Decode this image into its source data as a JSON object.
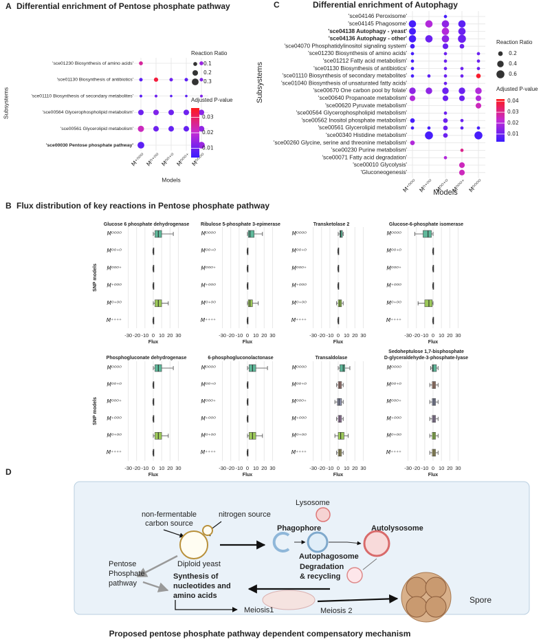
{
  "chart_data": [
    {
      "type": "dot",
      "label": "A",
      "title": "Differential enrichment of Pentose phosphate pathway",
      "ylabel": "Subsystems",
      "xlabel": "Models",
      "categories": [
        "M⁺ᴼᴼᴼ",
        "Mᴼ⁺ᴼᴼ",
        "Mᴼᴼ⁺ᴼ",
        "Mᴼᴼᴼ⁺",
        "Mᴼᴼᴼᴼ"
      ],
      "rows": [
        "'sce01230  Biosynthesis of amino acids'",
        "'sce01130  Biosynthesis of antibiotics'",
        "'sce01110  Biosynthesis of secondary metabolites'",
        "'sce00564  Glycerophospholipid metabolism'",
        "'sce00561  Glycerolipid metabolism'",
        "'sce00030  Pentose phosphate pathway'"
      ],
      "highlight_rows": [
        5
      ],
      "highlight_color": "#8b0000",
      "sizes": [
        [
          0.1,
          null,
          null,
          null,
          0.1
        ],
        [
          0.08,
          0.12,
          0.08,
          0.08,
          0.08
        ],
        [
          0.05,
          0.05,
          0.04,
          0.04,
          0.05
        ],
        [
          0.2,
          0.2,
          0.2,
          0.2,
          0.2
        ],
        [
          0.25,
          0.2,
          0.2,
          0.2,
          0.22
        ],
        [
          0.3,
          null,
          null,
          null,
          0.3
        ]
      ],
      "pvalues": [
        [
          0.025,
          null,
          null,
          null,
          0.015
        ],
        [
          0.008,
          0.033,
          0.01,
          0.008,
          0.012
        ],
        [
          0.008,
          0.01,
          0.008,
          0.008,
          0.012
        ],
        [
          0.01,
          0.012,
          0.01,
          0.01,
          0.013
        ],
        [
          0.022,
          0.01,
          0.009,
          0.009,
          0.014
        ],
        [
          0.008,
          null,
          null,
          null,
          0.015
        ]
      ],
      "size_legend_title": "Reaction Ratio",
      "size_ticks": [
        0.1,
        0.2,
        0.3
      ],
      "color_legend_title": "Adjusted P-value",
      "colorlim": [
        0.004,
        0.036
      ],
      "color_ticks": [
        0.01,
        0.02,
        0.03
      ],
      "colors": [
        "#3a1cff",
        "#c42bd4",
        "#ff1a1a"
      ]
    },
    {
      "type": "box",
      "label": "B",
      "title": "Flux distribution of key reactions in  Pentose phosphate pathway",
      "ylabel": "SNP models",
      "xlabel": "Flux",
      "categories": [
        "Mᴼᴼᴼᴼ",
        "Mᴼᴼ⁺ᴼ",
        "Mᴼᴼᴼ⁺",
        "M⁺ᴼᴼᴼ",
        "Mᴼ⁺ᴼᴼ",
        "M⁺⁺⁺⁺"
      ],
      "xlim": [
        -33,
        33
      ],
      "xticks": [
        -30,
        -20,
        -10,
        0,
        10,
        20,
        30
      ],
      "panels": [
        {
          "title": [
            "Glucose 6  phosphate dehydrogenase"
          ],
          "colors": [
            "#5fb89a",
            "#6d6d6d",
            "#6d6d6d",
            "#6d6d6d",
            "#9cc95a",
            "#6d6d6d"
          ],
          "boxes": [
            [
              0,
              2,
              6,
              10,
              24
            ],
            [
              -0.5,
              0,
              0,
              0.3,
              0.5
            ],
            [
              -0.5,
              0,
              0,
              0.3,
              0.5
            ],
            [
              -0.5,
              0,
              0,
              0.3,
              0.5
            ],
            [
              0,
              2,
              6,
              10,
              18
            ],
            [
              -0.5,
              0,
              0,
              0.3,
              0.5
            ]
          ]
        },
        {
          "title": [
            "Ribulose 5-phosphate 3-epimerase"
          ],
          "colors": [
            "#5fb89a",
            "#6d6d6d",
            "#6d6d6d",
            "#6d6d6d",
            "#9cc95a",
            "#6d6d6d"
          ],
          "boxes": [
            [
              0,
              1,
              3,
              8,
              18
            ],
            [
              -0.5,
              0,
              0,
              0.3,
              0.5
            ],
            [
              -0.5,
              0,
              0,
              0.3,
              0.5
            ],
            [
              -0.5,
              0,
              0,
              0.3,
              0.5
            ],
            [
              0,
              1,
              3,
              6,
              13
            ],
            [
              -0.5,
              0,
              0,
              0.3,
              0.5
            ]
          ]
        },
        {
          "title": [
            "Transketolase 2"
          ],
          "colors": [
            "#5fb89a",
            "#6d6d6d",
            "#6d6d6d",
            "#6d6d6d",
            "#9cc95a",
            "#6d6d6d"
          ],
          "boxes": [
            [
              0,
              2,
              3,
              5,
              6
            ],
            [
              -0.5,
              0,
              0,
              0.3,
              0.5
            ],
            [
              -0.5,
              0,
              0,
              0.3,
              0.5
            ],
            [
              -0.5,
              0,
              0,
              0.3,
              0.5
            ],
            [
              -2,
              0,
              2,
              4,
              6
            ],
            [
              -0.5,
              0,
              0,
              0.3,
              0.5
            ]
          ]
        },
        {
          "title": [
            "Glucose-6-phosphate isomerase"
          ],
          "colors": [
            "#5fb89a",
            "#6d6d6d",
            "#6d6d6d",
            "#6d6d6d",
            "#9cc95a",
            "#6d6d6d"
          ],
          "boxes": [
            [
              -22,
              -12,
              -6,
              -2,
              0
            ],
            [
              -0.5,
              0,
              0,
              0.3,
              0.5
            ],
            [
              -0.5,
              0,
              0,
              0.3,
              0.5
            ],
            [
              -0.5,
              0,
              0,
              0.3,
              0.5
            ],
            [
              -18,
              -10,
              -5,
              -1,
              0
            ],
            [
              -0.5,
              0,
              0,
              0.3,
              0.5
            ]
          ]
        },
        {
          "title": [
            "Phosphogluconate dehydrogenase"
          ],
          "colors": [
            "#5fb89a",
            "#6d6d6d",
            "#6d6d6d",
            "#6d6d6d",
            "#9cc95a",
            "#6d6d6d"
          ],
          "boxes": [
            [
              0,
              2,
              6,
              10,
              24
            ],
            [
              -0.5,
              0,
              0,
              0.3,
              0.5
            ],
            [
              -0.5,
              0,
              0,
              0.3,
              0.5
            ],
            [
              -0.5,
              0,
              0,
              0.3,
              0.5
            ],
            [
              0,
              2,
              6,
              10,
              18
            ],
            [
              -0.5,
              0,
              0,
              0.3,
              0.5
            ]
          ]
        },
        {
          "title": [
            "6-phosphogluconolactonase"
          ],
          "colors": [
            "#5fb89a",
            "#6d6d6d",
            "#6d6d6d",
            "#6d6d6d",
            "#9cc95a",
            "#6d6d6d"
          ],
          "boxes": [
            [
              0,
              2,
              6,
              10,
              24
            ],
            [
              -0.5,
              0,
              0,
              0.3,
              0.5
            ],
            [
              -0.5,
              0,
              0,
              0.3,
              0.5
            ],
            [
              -0.5,
              0,
              0,
              0.3,
              0.5
            ],
            [
              0,
              2,
              6,
              10,
              18
            ],
            [
              -0.5,
              0,
              0,
              0.3,
              0.5
            ]
          ]
        },
        {
          "title": [
            "Transaldolase"
          ],
          "colors": [
            "#5fb89a",
            "#b08a84",
            "#8a8fa8",
            "#a88ab0",
            "#9cc95a",
            "#a9a26c"
          ],
          "boxes": [
            [
              0,
              2,
              6,
              8,
              14
            ],
            [
              -2,
              0,
              2,
              4,
              6
            ],
            [
              -4,
              -1,
              1,
              4,
              6
            ],
            [
              -2,
              0,
              2,
              4,
              6
            ],
            [
              -4,
              0,
              3,
              7,
              12
            ],
            [
              -2,
              0,
              2,
              4,
              6
            ]
          ]
        },
        {
          "title": [
            "Sedoheptulose 1,7-bisphosphate",
            "D-glyceraldehyde-3-phosphate-lyase"
          ],
          "colors": [
            "#5fb89a",
            "#b08a7a",
            "#8a8fa8",
            "#9a8aa8",
            "#9cc95a",
            "#a9a26c"
          ],
          "boxes": [
            [
              -3,
              -1,
              0,
              4,
              6
            ],
            [
              -4,
              -1,
              1,
              3,
              6
            ],
            [
              -4,
              -1,
              1,
              3,
              6
            ],
            [
              -4,
              -1,
              1,
              3,
              6
            ],
            [
              -4,
              -1,
              1,
              3,
              6
            ],
            [
              -4,
              -1,
              1,
              3,
              6
            ]
          ]
        }
      ]
    },
    {
      "type": "dot",
      "label": "C",
      "title": "Differential enrichment of Autophagy",
      "ylabel": "Subsystems",
      "xlabel": "Models",
      "categories": [
        "M⁺ᴼᴼᴼ",
        "Mᴼ⁺ᴼᴼ",
        "Mᴼᴼ⁺ᴼ",
        "Mᴼᴼᴼ⁺",
        "Mᴼᴼᴼᴼ"
      ],
      "rows": [
        "'sce04146  Peroxisome'",
        "'sce04145  Phagosome'",
        "'sce04138  Autophagy - yeast'",
        "'sce04136  Autophagy - other'",
        "'sce04070  Phosphatidylinositol signaling system'",
        "'sce01230  Biosynthesis of amino acids'",
        "'sce01212  Fatty acid metabolism'",
        "'sce01130  Biosynthesis of antibiotics'",
        "'sce01110  Biosynthesis of secondary metabolites'",
        "'sce01040  Biosynthesis of unsaturated fatty acids'",
        "'sce00670  One carbon pool by folate'",
        "'sce00640  Propanoate metabolism'",
        "'sce00620  Pyruvate metabolism'",
        "'sce00564  Glycerophospholipid metabolism'",
        "'sce00562  Inositol phosphate metabolism'",
        "'sce00561  Glycerolipid metabolism'",
        "'sce00340  Histidine metabolism'",
        "'sce00260  Glycine, serine and threonine metabolism'",
        "'sce00230  Purine metabolism'",
        "'sce00071  Fatty acid degradation'",
        "'sce00010  Glycolysis'",
        "'Gluconeogenesis'"
      ],
      "highlight_rows": [
        2,
        3
      ],
      "highlight_color": "#8b0000",
      "sizes": [
        [
          null,
          null,
          0.1,
          null,
          null
        ],
        [
          0.5,
          0.5,
          0.5,
          0.5,
          null
        ],
        [
          0.45,
          null,
          0.5,
          0.5,
          null
        ],
        [
          0.5,
          0.5,
          0.5,
          0.6,
          null
        ],
        [
          0.2,
          null,
          0.3,
          0.2,
          null
        ],
        [
          0.1,
          null,
          0.1,
          null,
          0.1
        ],
        [
          0.1,
          null,
          0.1,
          null,
          0.1
        ],
        [
          0.1,
          null,
          0.1,
          0.1,
          0.1
        ],
        [
          0.1,
          0.1,
          0.1,
          0.1,
          0.2
        ],
        [
          null,
          null,
          0.1,
          null,
          null
        ],
        [
          0.4,
          0.4,
          0.4,
          0.4,
          0.4
        ],
        [
          0.3,
          null,
          0.3,
          0.3,
          0.3
        ],
        [
          null,
          null,
          null,
          null,
          0.3
        ],
        [
          null,
          null,
          0.1,
          null,
          null
        ],
        [
          0.2,
          null,
          0.2,
          0.1,
          null
        ],
        [
          0.1,
          0.1,
          0.2,
          0.1,
          0.1
        ],
        [
          null,
          0.6,
          0.2,
          null,
          0.6
        ],
        [
          0.2,
          null,
          null,
          null,
          null
        ],
        [
          null,
          null,
          null,
          0.1,
          null
        ],
        [
          null,
          null,
          0.1,
          null,
          null
        ],
        [
          null,
          null,
          null,
          0.3,
          null
        ],
        [
          null,
          null,
          null,
          0.3,
          null
        ]
      ],
      "pvalues": [
        [
          null,
          null,
          0.005,
          null,
          null
        ],
        [
          0.005,
          0.02,
          0.015,
          0.008,
          null
        ],
        [
          0.005,
          null,
          0.02,
          0.01,
          null
        ],
        [
          0.005,
          0.01,
          0.015,
          0.01,
          null
        ],
        [
          0.005,
          null,
          0.01,
          0.01,
          null
        ],
        [
          0.005,
          null,
          0.01,
          null,
          0.01
        ],
        [
          0.005,
          null,
          0.01,
          null,
          0.01
        ],
        [
          0.005,
          null,
          0.01,
          0.01,
          0.01
        ],
        [
          0.005,
          0.008,
          0.01,
          0.01,
          0.04
        ],
        [
          null,
          null,
          0.01,
          null,
          null
        ],
        [
          0.015,
          0.015,
          0.01,
          0.01,
          0.02
        ],
        [
          0.02,
          null,
          0.01,
          0.01,
          0.02
        ],
        [
          null,
          null,
          null,
          null,
          0.025
        ],
        [
          null,
          null,
          0.01,
          null,
          null
        ],
        [
          0.005,
          null,
          0.01,
          0.01,
          null
        ],
        [
          0.005,
          0.005,
          0.01,
          0.008,
          0.005
        ],
        [
          null,
          0.005,
          0.01,
          null,
          0.005
        ],
        [
          0.02,
          null,
          null,
          null,
          null
        ],
        [
          null,
          null,
          null,
          0.03,
          null
        ],
        [
          null,
          null,
          0.02,
          null,
          null
        ],
        [
          null,
          null,
          null,
          0.025,
          null
        ],
        [
          null,
          null,
          null,
          0.025,
          null
        ]
      ],
      "size_legend_title": "Reaction Ratio",
      "size_ticks": [
        0.2,
        0.4,
        0.6
      ],
      "color_legend_title": "Adjusted P-value",
      "colorlim": [
        0.003,
        0.042
      ],
      "color_ticks": [
        0.01,
        0.02,
        0.03,
        0.04
      ],
      "colors": [
        "#3a1cff",
        "#c42bd4",
        "#ff1a1a"
      ]
    }
  ],
  "diagram": {
    "label": "D",
    "carbon_source": [
      "non-fermentable",
      "carbon source"
    ],
    "nitrogen_source": "nitrogen source",
    "yeast": "Diploid yeast",
    "ppp": [
      "Pentose",
      "Phosphate",
      "pathway"
    ],
    "synthesis": [
      "Synthesis  of",
      "nucleotides and",
      "amino acids"
    ],
    "meiosis1": "Meiosis1",
    "lysosome": "Lysosome",
    "phagophore": "Phagophore",
    "autolysosome": "Autolysosome",
    "autophagosome": "Autophagosome",
    "degradation": [
      "Degradation",
      "& recycling"
    ],
    "meiosis2": "Meiosis 2",
    "spore": "Spore",
    "caption": "Proposed pentose phosphate pathway dependent compensatory mechanism"
  }
}
